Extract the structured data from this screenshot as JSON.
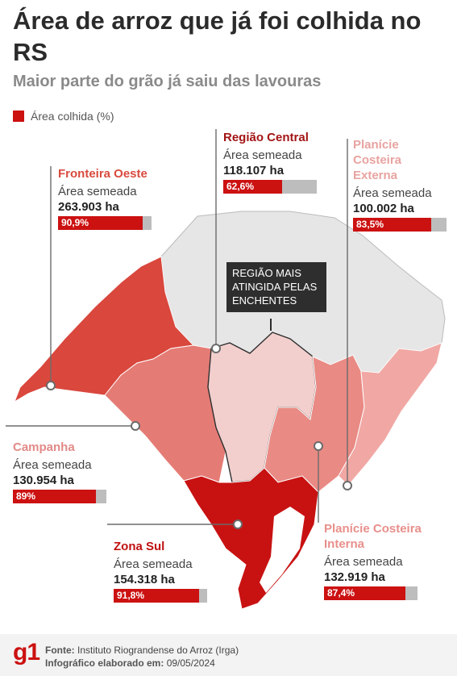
{
  "header": {
    "title": "Área de arroz que já foi colhida no RS",
    "subtitle": "Maior parte do grão já saiu das lavouras"
  },
  "legend": {
    "label": "Área colhida (%)",
    "color": "#cc1111"
  },
  "callout": {
    "text": "REGIÃO MAIS ATINGIDA PELAS ENCHENTES"
  },
  "chart_data": {
    "type": "bar",
    "title": "Área de arroz que já foi colhida no RS",
    "subtitle": "Maior parte do grão já saiu das lavouras",
    "legend": "Área colhida (%)",
    "unit": "%",
    "xlim": [
      0,
      100
    ],
    "regions": [
      {
        "name": "Fronteira Oeste",
        "sown_label": "Área semeada",
        "sown_area": "263.903 ha",
        "harvested_pct": 90.9,
        "harvested_label": "90,9%",
        "name_color": "#d94a3d",
        "fill": "#d9473d"
      },
      {
        "name": "Região Central",
        "sown_label": "Área semeada",
        "sown_area": "118.107 ha",
        "harvested_pct": 62.6,
        "harvested_label": "62,6%",
        "name_color": "#a31414",
        "fill": "#f2cfcd"
      },
      {
        "name": "Planície Costeira Externa",
        "sown_label": "Área semeada",
        "sown_area": "100.002 ha",
        "harvested_pct": 83.5,
        "harvested_label": "83,5%",
        "name_color": "#e8a3a0",
        "fill": "#f1a8a4"
      },
      {
        "name": "Campanha",
        "sown_label": "Área semeada",
        "sown_area": "130.954 ha",
        "harvested_pct": 89,
        "harvested_label": "89%",
        "name_color": "#e28a87",
        "fill": "#e57b75"
      },
      {
        "name": "Zona Sul",
        "sown_label": "Área semeada",
        "sown_area": "154.318 ha",
        "harvested_pct": 91.8,
        "harvested_label": "91,8%",
        "name_color": "#c01010",
        "fill": "#c81212"
      },
      {
        "name": "Planície Costeira Interna",
        "sown_label": "Área semeada",
        "sown_area": "132.919 ha",
        "harvested_pct": 87.4,
        "harvested_label": "87,4%",
        "name_color": "#e88f8b",
        "fill": "#e98a84"
      }
    ]
  },
  "footer": {
    "logo": "g1",
    "source_label": "Fonte:",
    "source_text": "Instituto Riograndense do Arroz (Irga)",
    "made_label": "Infográfico elaborado em:",
    "made_text": "09/05/2024"
  }
}
